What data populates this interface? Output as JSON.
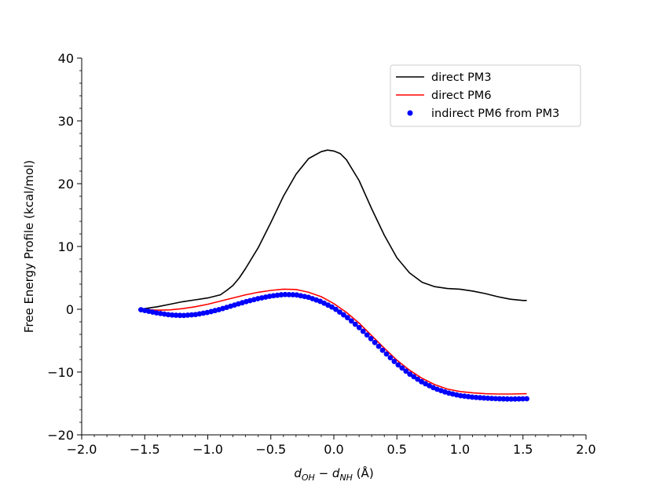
{
  "chart_data": {
    "type": "line",
    "xlabel": {
      "main1": "d",
      "sub1": "OH",
      "minus": " − ",
      "main2": "d",
      "sub2": "NH",
      "unit": " (Å)"
    },
    "ylabel": "Free Energy Profile (kcal/mol)",
    "xlim": [
      -2.0,
      2.0
    ],
    "ylim": [
      -20,
      40
    ],
    "x_ticks": [
      -2.0,
      -1.5,
      -1.0,
      -0.5,
      0.0,
      0.5,
      1.0,
      1.5,
      2.0
    ],
    "x_tick_labels": [
      "−2.0",
      "−1.5",
      "−1.0",
      "−0.5",
      "0.0",
      "0.5",
      "1.0",
      "1.5",
      "2.0"
    ],
    "y_ticks": [
      -20,
      -10,
      0,
      10,
      20,
      30,
      40
    ],
    "y_tick_labels": [
      "−20",
      "−10",
      "0",
      "10",
      "20",
      "30",
      "40"
    ],
    "grid": false,
    "legend_position": "top-right",
    "series": [
      {
        "name": "direct PM3",
        "kind": "line",
        "color": "#000000",
        "points": [
          [
            -1.55,
            0.0
          ],
          [
            -1.5,
            0.1
          ],
          [
            -1.4,
            0.4
          ],
          [
            -1.3,
            0.8
          ],
          [
            -1.2,
            1.2
          ],
          [
            -1.1,
            1.5
          ],
          [
            -1.0,
            1.8
          ],
          [
            -0.9,
            2.3
          ],
          [
            -0.85,
            3.0
          ],
          [
            -0.8,
            3.8
          ],
          [
            -0.75,
            5.0
          ],
          [
            -0.7,
            6.5
          ],
          [
            -0.6,
            9.8
          ],
          [
            -0.5,
            13.8
          ],
          [
            -0.4,
            18.0
          ],
          [
            -0.3,
            21.5
          ],
          [
            -0.2,
            24.0
          ],
          [
            -0.1,
            25.1
          ],
          [
            -0.05,
            25.35
          ],
          [
            0.0,
            25.2
          ],
          [
            0.05,
            24.8
          ],
          [
            0.1,
            23.8
          ],
          [
            0.2,
            20.5
          ],
          [
            0.3,
            16.0
          ],
          [
            0.4,
            11.8
          ],
          [
            0.5,
            8.2
          ],
          [
            0.6,
            5.8
          ],
          [
            0.7,
            4.3
          ],
          [
            0.8,
            3.6
          ],
          [
            0.9,
            3.3
          ],
          [
            1.0,
            3.2
          ],
          [
            1.1,
            2.9
          ],
          [
            1.2,
            2.5
          ],
          [
            1.3,
            2.0
          ],
          [
            1.4,
            1.6
          ],
          [
            1.5,
            1.4
          ],
          [
            1.53,
            1.4
          ]
        ]
      },
      {
        "name": "direct PM6",
        "kind": "line",
        "color": "#ff0000",
        "points": [
          [
            -1.55,
            0.0
          ],
          [
            -1.5,
            -0.05
          ],
          [
            -1.4,
            -0.15
          ],
          [
            -1.3,
            -0.1
          ],
          [
            -1.2,
            0.1
          ],
          [
            -1.1,
            0.4
          ],
          [
            -1.0,
            0.8
          ],
          [
            -0.9,
            1.3
          ],
          [
            -0.8,
            1.8
          ],
          [
            -0.7,
            2.3
          ],
          [
            -0.6,
            2.7
          ],
          [
            -0.5,
            3.0
          ],
          [
            -0.4,
            3.2
          ],
          [
            -0.3,
            3.15
          ],
          [
            -0.2,
            2.7
          ],
          [
            -0.1,
            2.0
          ],
          [
            0.0,
            0.9
          ],
          [
            0.1,
            -0.5
          ],
          [
            0.2,
            -2.2
          ],
          [
            0.3,
            -4.2
          ],
          [
            0.4,
            -6.2
          ],
          [
            0.5,
            -8.1
          ],
          [
            0.6,
            -9.7
          ],
          [
            0.7,
            -11.0
          ],
          [
            0.8,
            -12.0
          ],
          [
            0.9,
            -12.7
          ],
          [
            1.0,
            -13.1
          ],
          [
            1.1,
            -13.3
          ],
          [
            1.2,
            -13.45
          ],
          [
            1.3,
            -13.5
          ],
          [
            1.4,
            -13.5
          ],
          [
            1.53,
            -13.45
          ]
        ]
      },
      {
        "name": "indirect PM6 from PM3",
        "kind": "scatter",
        "color": "#0000ff",
        "x_start": -1.53,
        "x_end": 1.53,
        "n_points": 100,
        "knots": [
          [
            -1.55,
            0.0
          ],
          [
            -1.5,
            -0.2
          ],
          [
            -1.4,
            -0.6
          ],
          [
            -1.3,
            -0.9
          ],
          [
            -1.2,
            -1.0
          ],
          [
            -1.1,
            -0.85
          ],
          [
            -1.0,
            -0.5
          ],
          [
            -0.9,
            0.0
          ],
          [
            -0.8,
            0.6
          ],
          [
            -0.7,
            1.2
          ],
          [
            -0.6,
            1.7
          ],
          [
            -0.5,
            2.1
          ],
          [
            -0.4,
            2.35
          ],
          [
            -0.3,
            2.3
          ],
          [
            -0.2,
            1.9
          ],
          [
            -0.1,
            1.2
          ],
          [
            0.0,
            0.2
          ],
          [
            0.1,
            -1.2
          ],
          [
            0.2,
            -2.9
          ],
          [
            0.3,
            -4.8
          ],
          [
            0.4,
            -6.8
          ],
          [
            0.5,
            -8.7
          ],
          [
            0.6,
            -10.3
          ],
          [
            0.7,
            -11.6
          ],
          [
            0.8,
            -12.6
          ],
          [
            0.9,
            -13.3
          ],
          [
            1.0,
            -13.75
          ],
          [
            1.1,
            -14.0
          ],
          [
            1.2,
            -14.15
          ],
          [
            1.3,
            -14.25
          ],
          [
            1.4,
            -14.3
          ],
          [
            1.53,
            -14.25
          ]
        ]
      }
    ]
  }
}
